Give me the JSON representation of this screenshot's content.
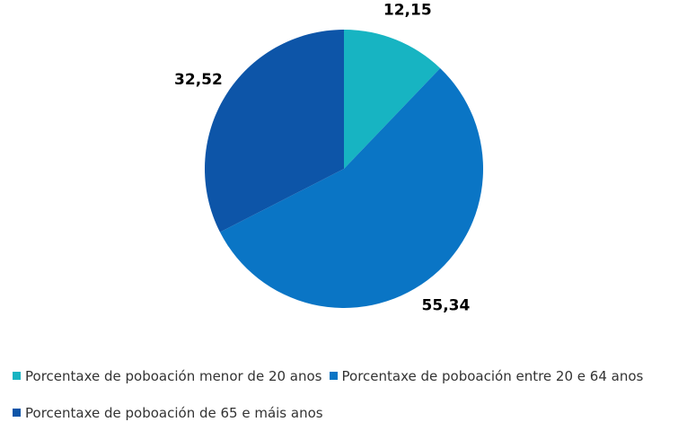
{
  "chart_data": {
    "type": "pie",
    "categories": [
      "Porcentaxe de poboación menor de 20 anos",
      "Porcentaxe de poboación entre 20 e 64 anos",
      "Porcentaxe de poboación de 65 e máis anos"
    ],
    "values": [
      12.15,
      55.34,
      32.52
    ],
    "value_labels": [
      "12,15",
      "55,34",
      "32,52"
    ],
    "colors": [
      "#17b4c2",
      "#0a75c5",
      "#0d55a8"
    ],
    "legend": "bottom"
  }
}
